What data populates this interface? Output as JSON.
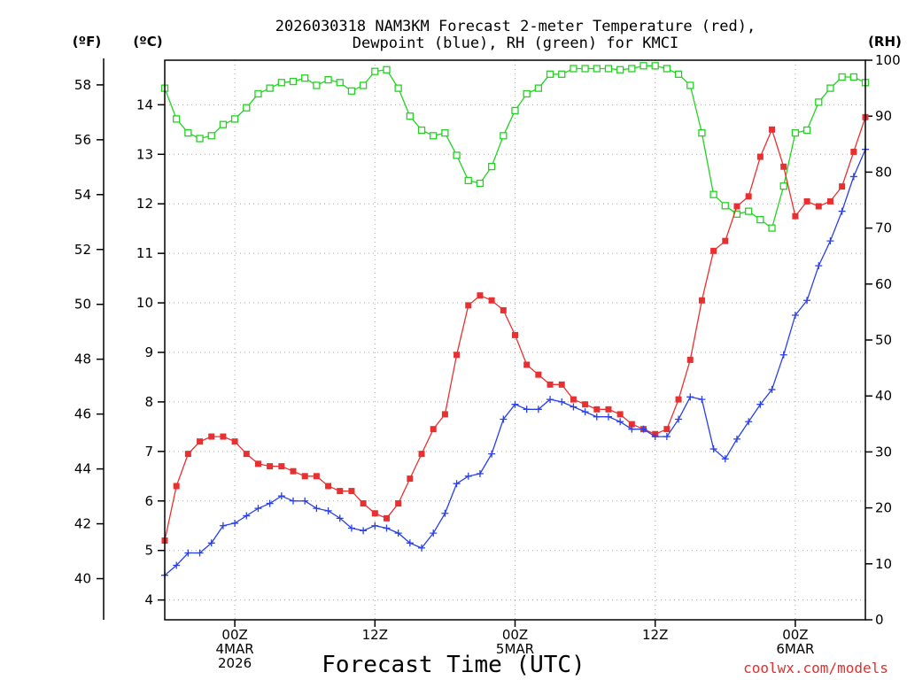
{
  "chart_data": {
    "type": "line",
    "title_line1": "2026030318 NAM3KM Forecast 2-meter Temperature (red),",
    "title_line2": "Dewpoint (blue), RH (green) for KMCI",
    "xlabel": "Forecast Time (UTC)",
    "credit": "coolwx.com/models",
    "units": {
      "fahrenheit": "(ºF)",
      "celsius": "(ºC)",
      "rh": "(RH)"
    },
    "x_unit": "hours after 2026-03-03 18Z",
    "xlim": [
      0,
      60
    ],
    "x_ticks": [
      {
        "x": 6,
        "line1": "00Z",
        "line2": "4MAR",
        "line3": "2026"
      },
      {
        "x": 18,
        "line1": "12Z",
        "line2": "",
        "line3": ""
      },
      {
        "x": 30,
        "line1": "00Z",
        "line2": "5MAR",
        "line3": ""
      },
      {
        "x": 42,
        "line1": "12Z",
        "line2": "",
        "line3": ""
      },
      {
        "x": 54,
        "line1": "00Z",
        "line2": "6MAR",
        "line3": ""
      }
    ],
    "y_left_celsius": {
      "range": [
        3.6,
        14.9
      ],
      "ticks": [
        "4",
        "5",
        "6",
        "7",
        "8",
        "9",
        "10",
        "11",
        "12",
        "13",
        "14"
      ]
    },
    "y_left_fahrenheit": {
      "range": [
        38.5,
        58.9
      ],
      "ticks": [
        "40",
        "42",
        "44",
        "46",
        "48",
        "50",
        "52",
        "54",
        "56",
        "58"
      ]
    },
    "y_right_rh": {
      "range": [
        0,
        100
      ],
      "ticks": [
        "0",
        "10",
        "20",
        "30",
        "40",
        "50",
        "60",
        "70",
        "80",
        "90",
        "100"
      ]
    },
    "series": [
      {
        "name": "Temperature",
        "axis": "celsius",
        "color": "#e83030",
        "marker": "filled-square",
        "x": [
          0,
          1,
          2,
          3,
          4,
          5,
          6,
          7,
          8,
          9,
          10,
          11,
          12,
          13,
          14,
          15,
          16,
          17,
          18,
          19,
          20,
          21,
          22,
          23,
          24,
          25,
          26,
          27,
          28,
          29,
          30,
          31,
          32,
          33,
          34,
          35,
          36,
          37,
          38,
          39,
          40,
          41,
          42,
          43,
          44,
          45,
          46,
          47,
          48,
          49,
          50,
          51,
          52,
          53,
          54,
          55,
          56,
          57,
          58,
          59,
          60
        ],
        "values": [
          5.2,
          6.3,
          6.95,
          7.2,
          7.3,
          7.3,
          7.2,
          6.95,
          6.75,
          6.7,
          6.7,
          6.6,
          6.5,
          6.5,
          6.3,
          6.2,
          6.2,
          5.95,
          5.75,
          5.65,
          5.95,
          6.45,
          6.95,
          7.45,
          7.75,
          8.95,
          9.95,
          10.15,
          10.05,
          9.85,
          9.35,
          8.75,
          8.55,
          8.35,
          8.35,
          8.05,
          7.95,
          7.85,
          7.85,
          7.75,
          7.55,
          7.45,
          7.35,
          7.45,
          8.05,
          8.85,
          10.05,
          11.05,
          11.25,
          11.95,
          12.15,
          12.95,
          13.5,
          12.75,
          11.75,
          12.05,
          11.95,
          12.05,
          12.35,
          13.05,
          13.75
        ]
      },
      {
        "name": "Dewpoint",
        "axis": "celsius",
        "color": "#2a40e8",
        "marker": "plus",
        "x": [
          0,
          1,
          2,
          3,
          4,
          5,
          6,
          7,
          8,
          9,
          10,
          11,
          12,
          13,
          14,
          15,
          16,
          17,
          18,
          19,
          20,
          21,
          22,
          23,
          24,
          25,
          26,
          27,
          28,
          29,
          30,
          31,
          32,
          33,
          34,
          35,
          36,
          37,
          38,
          39,
          40,
          41,
          42,
          43,
          44,
          45,
          46,
          47,
          48,
          49,
          50,
          51,
          52,
          53,
          54,
          55,
          56,
          57,
          58,
          59,
          60
        ],
        "values": [
          4.5,
          4.7,
          4.95,
          4.95,
          5.15,
          5.5,
          5.55,
          5.7,
          5.85,
          5.95,
          6.1,
          6.0,
          6.0,
          5.85,
          5.8,
          5.65,
          5.45,
          5.4,
          5.5,
          5.45,
          5.35,
          5.15,
          5.05,
          5.35,
          5.75,
          6.35,
          6.5,
          6.55,
          6.95,
          7.65,
          7.95,
          7.85,
          7.85,
          8.05,
          8.0,
          7.9,
          7.8,
          7.7,
          7.7,
          7.6,
          7.45,
          7.45,
          7.3,
          7.3,
          7.65,
          8.1,
          8.05,
          7.05,
          6.85,
          7.25,
          7.6,
          7.95,
          8.25,
          8.95,
          9.75,
          10.05,
          10.75,
          11.25,
          11.85,
          12.55,
          13.1
        ]
      },
      {
        "name": "RH",
        "axis": "rh",
        "color": "#22d322",
        "marker": "open-square",
        "x": [
          0,
          1,
          2,
          3,
          4,
          5,
          6,
          7,
          8,
          9,
          10,
          11,
          12,
          13,
          14,
          15,
          16,
          17,
          18,
          19,
          20,
          21,
          22,
          23,
          24,
          25,
          26,
          27,
          28,
          29,
          30,
          31,
          32,
          33,
          34,
          35,
          36,
          37,
          38,
          39,
          40,
          41,
          42,
          43,
          44,
          45,
          46,
          47,
          48,
          49,
          50,
          51,
          52,
          53,
          54,
          55,
          56,
          57,
          58,
          59,
          60
        ],
        "values": [
          95,
          89.5,
          87,
          86,
          86.5,
          88.5,
          89.5,
          91.5,
          94,
          95,
          96,
          96.2,
          96.8,
          95.5,
          96.5,
          96,
          94.5,
          95.5,
          98,
          98.3,
          95,
          90,
          87.5,
          86.5,
          87,
          83,
          78.5,
          78,
          81,
          86.5,
          91,
          94,
          95,
          97.5,
          97.5,
          98.5,
          98.5,
          98.5,
          98.5,
          98.3,
          98.5,
          99,
          99,
          98.5,
          97.5,
          95.5,
          87,
          76,
          74,
          72.5,
          73,
          71.5,
          70,
          77.5,
          87,
          87.5,
          92.5,
          95,
          97,
          97,
          96
        ]
      }
    ]
  }
}
